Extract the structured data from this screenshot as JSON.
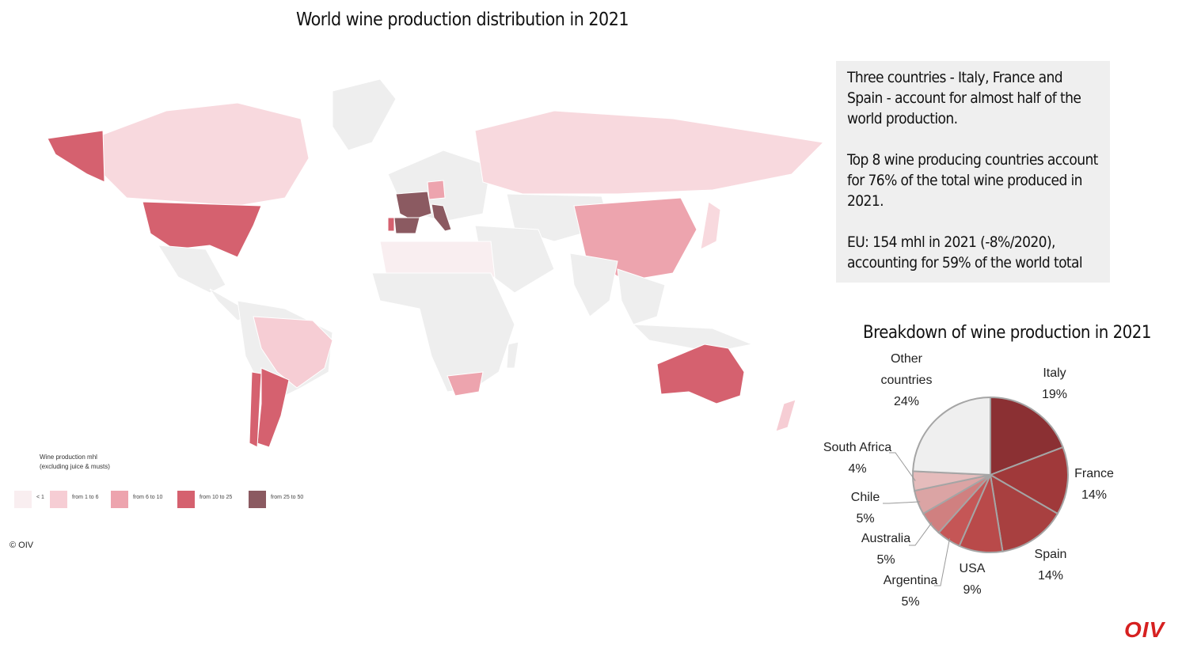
{
  "map": {
    "title": "World wine production distribution in 2021",
    "legend": {
      "title_line1": "Wine production mhl",
      "title_line2": "(excluding juice & musts)",
      "items": [
        {
          "label": "< 1",
          "color": "#f9eef0"
        },
        {
          "label": "from 1 to 6",
          "color": "#f6cdd4"
        },
        {
          "label": "from 6 to 10",
          "color": "#eda4ae"
        },
        {
          "label": "from 10 to 25",
          "color": "#d5616f"
        },
        {
          "label": "from 25 to 50",
          "color": "#8b5a61"
        }
      ]
    },
    "copyright": "© OIV"
  },
  "info": {
    "p1": "Three countries - Italy, France and Spain - account for almost half of the world production.",
    "p2": "Top 8 wine producing countries account for 76% of the total wine produced in 2021.",
    "p3": "EU: 154 mhl in 2021 (-8%/2020), accounting for 59% of the world total"
  },
  "chart_data": {
    "type": "pie",
    "title": "Breakdown of wine production in 2021",
    "slices": [
      {
        "label": "Italy",
        "value": 19,
        "display": "19%",
        "color": "#8b3033"
      },
      {
        "label": "France",
        "value": 14,
        "display": "14%",
        "color": "#a0393a"
      },
      {
        "label": "Spain",
        "value": 14,
        "display": "14%",
        "color": "#a84040"
      },
      {
        "label": "USA",
        "value": 9,
        "display": "9%",
        "color": "#b94a4a"
      },
      {
        "label": "Argentina",
        "value": 5,
        "display": "5%",
        "color": "#c55656"
      },
      {
        "label": "Australia",
        "value": 5,
        "display": "5%",
        "color": "#d08080"
      },
      {
        "label": "Chile",
        "value": 5,
        "display": "5%",
        "color": "#dba4a4"
      },
      {
        "label": "South Africa",
        "value": 4,
        "display": "4%",
        "color": "#e5bcbc"
      },
      {
        "label": "Other countries",
        "value": 24,
        "display": "24%",
        "color": "#efefef"
      }
    ]
  },
  "logo": "OIV"
}
